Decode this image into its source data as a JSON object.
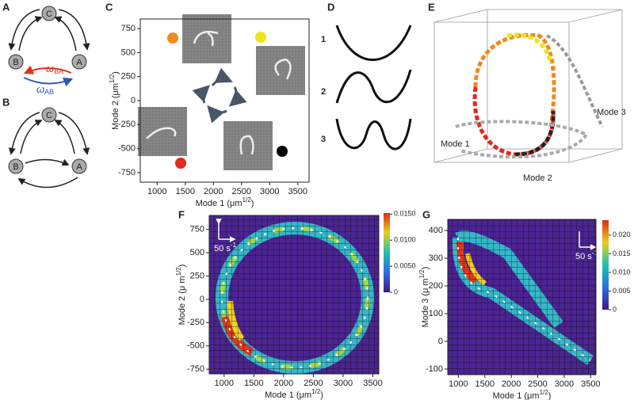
{
  "panels": {
    "A": {
      "label": "A",
      "nodes": [
        "C",
        "B",
        "A"
      ],
      "omega_ba": {
        "symbol": "ω",
        "sub": "BA"
      },
      "omega_ab": {
        "symbol": "ω",
        "sub": "AB"
      }
    },
    "B": {
      "label": "B",
      "nodes": [
        "C",
        "B",
        "A"
      ]
    },
    "C": {
      "label": "C",
      "xlim": [
        700,
        3700
      ],
      "ylim": [
        -850,
        850
      ],
      "xticks": [
        1000,
        1500,
        2000,
        2500,
        3000,
        3500
      ],
      "yticks": [
        -750,
        -500,
        -250,
        0,
        250,
        500,
        750
      ],
      "x_label": {
        "text": "Mode 1 (μm",
        "sup": "1/2",
        "end": ")"
      },
      "y_label": {
        "text": "Mode 2 (μm",
        "sup": "1/2",
        "end": ")"
      }
    },
    "D": {
      "label": "D",
      "modes": [
        "1",
        "2",
        "3"
      ]
    },
    "E": {
      "label": "E",
      "axes": [
        "Mode 1",
        "Mode 2",
        "Mode 3"
      ]
    },
    "F": {
      "label": "F",
      "xlim": [
        750,
        3600
      ],
      "ylim": [
        -800,
        900
      ],
      "xticks": [
        1000,
        1500,
        2000,
        2500,
        3000,
        3500
      ],
      "yticks": [
        -750,
        -500,
        -250,
        0,
        250,
        500,
        750
      ],
      "x_label": {
        "text": "Mode 1 (μm",
        "sup": "1/2",
        "end": ")"
      },
      "y_label": {
        "text": "Mode 2 (μ m",
        "sup": "1/2",
        "end": ")"
      },
      "scale": {
        "text": "50 s",
        "sup": "-1"
      },
      "colorbar": {
        "lim": [
          0,
          0.0152
        ],
        "ticks": [
          {
            "value": 0,
            "label": "0"
          },
          {
            "value": 0.005,
            "label": "0.0050"
          },
          {
            "value": 0.01,
            "label": "0.0100"
          },
          {
            "value": 0.015,
            "label": "0.0150"
          }
        ]
      }
    },
    "G": {
      "label": "G",
      "xlim": [
        800,
        3600
      ],
      "ylim": [
        -120,
        440
      ],
      "xticks": [
        1000,
        1500,
        2000,
        2500,
        3000,
        3500
      ],
      "yticks": [
        -100,
        0,
        100,
        200,
        300,
        400
      ],
      "x_label": {
        "text": "Mode 1 (μm",
        "sup": "1/2",
        "end": ")"
      },
      "y_label": {
        "text": "Mode 3 (μ m",
        "sup": "1/2",
        "end": ")"
      },
      "scale": {
        "text": "50 s",
        "sup": "-1"
      },
      "colorbar": {
        "lim": [
          0,
          0.024
        ],
        "ticks": [
          {
            "value": 0,
            "label": "0"
          },
          {
            "value": 0.005,
            "label": "0.005"
          },
          {
            "value": 0.01,
            "label": "0.010"
          },
          {
            "value": 0.015,
            "label": "0.015"
          },
          {
            "value": 0.02,
            "label": "0.020"
          }
        ]
      }
    }
  }
}
